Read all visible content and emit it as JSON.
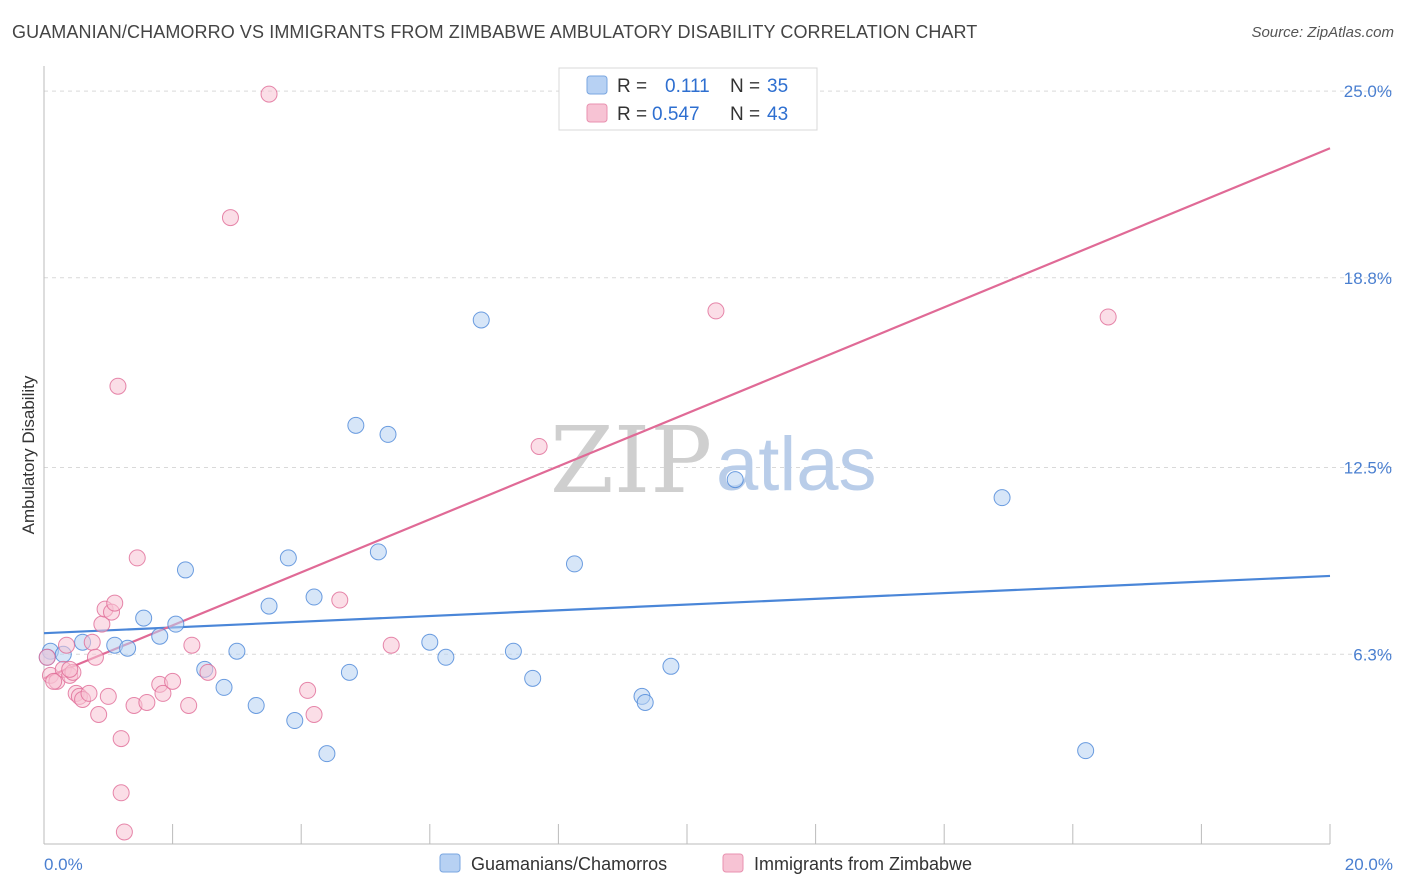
{
  "header": {
    "title": "GUAMANIAN/CHAMORRO VS IMMIGRANTS FROM ZIMBABWE AMBULATORY DISABILITY CORRELATION CHART",
    "source": "Source: ZipAtlas.com"
  },
  "watermark": {
    "zip": "ZIP",
    "atlas": "atlas"
  },
  "legend": {
    "rows": [
      {
        "r_label": "R =",
        "r_value": "0.111",
        "n_label": "N =",
        "n_value": "35",
        "color": "#9fc2ee"
      },
      {
        "r_label": "R =",
        "r_value": "0.547",
        "n_label": "N =",
        "n_value": "43",
        "color": "#f3a9c1"
      }
    ]
  },
  "chart_data": {
    "type": "scatter",
    "title": "GUAMANIAN/CHAMORRO VS IMMIGRANTS FROM ZIMBABWE AMBULATORY DISABILITY CORRELATION CHART",
    "xlabel": "",
    "ylabel": "Ambulatory Disability",
    "xlim": [
      0,
      20
    ],
    "ylim": [
      0,
      25.6
    ],
    "x_tick_labels": [
      "0.0%",
      "20.0%"
    ],
    "y_ticks": [
      6.3,
      12.5,
      18.8,
      25.0
    ],
    "y_tick_labels": [
      "6.3%",
      "12.5%",
      "18.8%",
      "25.0%"
    ],
    "grid": true,
    "series": [
      {
        "name": "Guamanians/Chamorros",
        "color": "#4a86d8",
        "fill": "#b7d1f3",
        "trend": {
          "x": [
            0,
            20
          ],
          "y": [
            7.0,
            8.9
          ]
        },
        "points": [
          [
            0.1,
            6.4
          ],
          [
            0.3,
            6.3
          ],
          [
            0.6,
            6.7
          ],
          [
            1.1,
            6.6
          ],
          [
            1.3,
            6.5
          ],
          [
            1.55,
            7.5
          ],
          [
            1.8,
            6.9
          ],
          [
            2.05,
            7.3
          ],
          [
            2.2,
            9.1
          ],
          [
            2.5,
            5.8
          ],
          [
            2.8,
            5.2
          ],
          [
            3.0,
            6.4
          ],
          [
            3.3,
            4.6
          ],
          [
            3.5,
            7.9
          ],
          [
            3.8,
            9.5
          ],
          [
            3.9,
            4.1
          ],
          [
            4.2,
            8.2
          ],
          [
            4.4,
            3.0
          ],
          [
            4.75,
            5.7
          ],
          [
            4.85,
            13.9
          ],
          [
            5.2,
            9.7
          ],
          [
            5.35,
            13.6
          ],
          [
            6.0,
            6.7
          ],
          [
            6.25,
            6.2
          ],
          [
            6.8,
            17.4
          ],
          [
            7.3,
            6.4
          ],
          [
            7.6,
            5.5
          ],
          [
            8.25,
            9.3
          ],
          [
            9.3,
            4.9
          ],
          [
            9.35,
            4.7
          ],
          [
            9.75,
            5.9
          ],
          [
            10.75,
            12.1
          ],
          [
            14.9,
            11.5
          ],
          [
            16.2,
            3.1
          ],
          [
            0.05,
            6.2
          ]
        ]
      },
      {
        "name": "Immigrants from Zimbabwe",
        "color": "#e06a96",
        "fill": "#f7c3d4",
        "trend": {
          "x": [
            0,
            20
          ],
          "y": [
            5.5,
            23.1
          ]
        },
        "points": [
          [
            0.05,
            6.2
          ],
          [
            0.1,
            5.6
          ],
          [
            0.2,
            5.4
          ],
          [
            0.3,
            5.8
          ],
          [
            0.35,
            6.6
          ],
          [
            0.4,
            5.6
          ],
          [
            0.45,
            5.7
          ],
          [
            0.5,
            5.0
          ],
          [
            0.55,
            4.9
          ],
          [
            0.6,
            4.8
          ],
          [
            0.7,
            5.0
          ],
          [
            0.75,
            6.7
          ],
          [
            0.8,
            6.2
          ],
          [
            0.85,
            4.3
          ],
          [
            0.9,
            7.3
          ],
          [
            0.95,
            7.8
          ],
          [
            1.0,
            4.9
          ],
          [
            1.05,
            7.7
          ],
          [
            1.1,
            8.0
          ],
          [
            1.2,
            3.5
          ],
          [
            1.2,
            1.7
          ],
          [
            1.15,
            15.2
          ],
          [
            1.25,
            0.4
          ],
          [
            1.4,
            4.6
          ],
          [
            1.45,
            9.5
          ],
          [
            1.6,
            4.7
          ],
          [
            1.8,
            5.3
          ],
          [
            1.85,
            5.0
          ],
          [
            2.0,
            5.4
          ],
          [
            2.25,
            4.6
          ],
          [
            2.3,
            6.6
          ],
          [
            2.55,
            5.7
          ],
          [
            2.9,
            20.8
          ],
          [
            3.5,
            24.9
          ],
          [
            4.1,
            5.1
          ],
          [
            4.2,
            4.3
          ],
          [
            4.6,
            8.1
          ],
          [
            5.4,
            6.6
          ],
          [
            7.7,
            13.2
          ],
          [
            10.45,
            17.7
          ],
          [
            16.55,
            17.5
          ],
          [
            0.15,
            5.4
          ],
          [
            0.4,
            5.8
          ]
        ]
      }
    ]
  },
  "bottom_legend": {
    "items": [
      {
        "label": "Guamanians/Chamorros",
        "color": "#b7d1f3",
        "stroke": "#4a86d8"
      },
      {
        "label": "Immigrants from Zimbabwe",
        "color": "#f7c3d4",
        "stroke": "#e06a96"
      }
    ]
  }
}
